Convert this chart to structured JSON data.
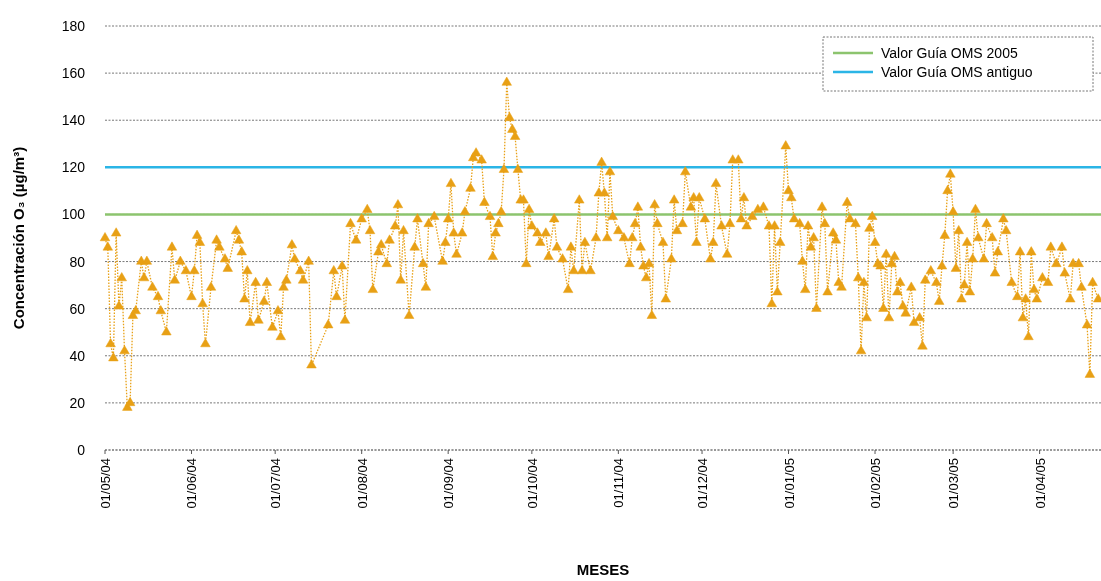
{
  "chart_data": {
    "type": "line",
    "xlabel": "MESES",
    "ylabel": "Concentración O₃ (µg/m³)",
    "xlim": [
      "2004-05-01",
      "2005-04-23"
    ],
    "ylim": [
      0,
      180
    ],
    "yticks": [
      0,
      20,
      40,
      60,
      80,
      100,
      120,
      140,
      160,
      180
    ],
    "xticks": [
      {
        "value": "2004-05-01",
        "label": "01/05/04"
      },
      {
        "value": "2004-06-01",
        "label": "01/06/04"
      },
      {
        "value": "2004-07-01",
        "label": "01/07/04"
      },
      {
        "value": "2004-08-01",
        "label": "01/08/04"
      },
      {
        "value": "2004-09-01",
        "label": "01/09/04"
      },
      {
        "value": "2004-10-01",
        "label": "01/10/04"
      },
      {
        "value": "2004-11-01",
        "label": "01/11/04"
      },
      {
        "value": "2004-12-01",
        "label": "01/12/04"
      },
      {
        "value": "2005-01-01",
        "label": "01/01/05"
      },
      {
        "value": "2005-02-01",
        "label": "01/02/05"
      },
      {
        "value": "2005-03-01",
        "label": "01/03/05"
      },
      {
        "value": "2005-04-01",
        "label": "01/04/05"
      }
    ],
    "grid": "y",
    "legend": "top right",
    "marker": "triangle",
    "line_style": "dotted",
    "ref_lines": [
      {
        "axis": "y",
        "value": 100,
        "label": "Valor Guía OMS 2005",
        "color": "#8cc46e"
      },
      {
        "axis": "y",
        "value": 120,
        "label": "Valor Guía OMS antiguo",
        "color": "#2bb5e6"
      }
    ],
    "series": [
      {
        "color": "#e8a015",
        "x": [
          "2004-05-01",
          "2004-05-02",
          "2004-05-03",
          "2004-05-04",
          "2004-05-05",
          "2004-05-06",
          "2004-05-07",
          "2004-05-08",
          "2004-05-09",
          "2004-05-10",
          "2004-05-11",
          "2004-05-12",
          "2004-05-14",
          "2004-05-15",
          "2004-05-16",
          "2004-05-18",
          "2004-05-20",
          "2004-05-21",
          "2004-05-23",
          "2004-05-25",
          "2004-05-26",
          "2004-05-28",
          "2004-05-30",
          "2004-06-01",
          "2004-06-02",
          "2004-06-03",
          "2004-06-04",
          "2004-06-05",
          "2004-06-06",
          "2004-06-08",
          "2004-06-10",
          "2004-06-11",
          "2004-06-13",
          "2004-06-14",
          "2004-06-17",
          "2004-06-18",
          "2004-06-19",
          "2004-06-20",
          "2004-06-21",
          "2004-06-22",
          "2004-06-24",
          "2004-06-25",
          "2004-06-27",
          "2004-06-28",
          "2004-06-30",
          "2004-07-02",
          "2004-07-03",
          "2004-07-04",
          "2004-07-05",
          "2004-07-07",
          "2004-07-08",
          "2004-07-10",
          "2004-07-11",
          "2004-07-13",
          "2004-07-14",
          "2004-07-20",
          "2004-07-22",
          "2004-07-23",
          "2004-07-25",
          "2004-07-26",
          "2004-07-28",
          "2004-07-30",
          "2004-08-01",
          "2004-08-03",
          "2004-08-04",
          "2004-08-05",
          "2004-08-07",
          "2004-08-08",
          "2004-08-10",
          "2004-08-11",
          "2004-08-13",
          "2004-08-14",
          "2004-08-15",
          "2004-08-16",
          "2004-08-18",
          "2004-08-20",
          "2004-08-21",
          "2004-08-23",
          "2004-08-24",
          "2004-08-25",
          "2004-08-27",
          "2004-08-30",
          "2004-08-31",
          "2004-09-01",
          "2004-09-02",
          "2004-09-03",
          "2004-09-04",
          "2004-09-06",
          "2004-09-07",
          "2004-09-09",
          "2004-09-10",
          "2004-09-11",
          "2004-09-13",
          "2004-09-14",
          "2004-09-16",
          "2004-09-17",
          "2004-09-18",
          "2004-09-19",
          "2004-09-20",
          "2004-09-21",
          "2004-09-22",
          "2004-09-23",
          "2004-09-24",
          "2004-09-25",
          "2004-09-26",
          "2004-09-27",
          "2004-09-28",
          "2004-09-29",
          "2004-09-30",
          "2004-10-01",
          "2004-10-03",
          "2004-10-04",
          "2004-10-06",
          "2004-10-07",
          "2004-10-09",
          "2004-10-10",
          "2004-10-12",
          "2004-10-14",
          "2004-10-15",
          "2004-10-16",
          "2004-10-18",
          "2004-10-19",
          "2004-10-20",
          "2004-10-22",
          "2004-10-24",
          "2004-10-25",
          "2004-10-26",
          "2004-10-27",
          "2004-10-28",
          "2004-10-29",
          "2004-10-30",
          "2004-11-01",
          "2004-11-03",
          "2004-11-05",
          "2004-11-06",
          "2004-11-07",
          "2004-11-08",
          "2004-11-09",
          "2004-11-10",
          "2004-11-11",
          "2004-11-12",
          "2004-11-13",
          "2004-11-14",
          "2004-11-15",
          "2004-11-17",
          "2004-11-18",
          "2004-11-20",
          "2004-11-21",
          "2004-11-22",
          "2004-11-24",
          "2004-11-25",
          "2004-11-27",
          "2004-11-28",
          "2004-11-29",
          "2004-11-30",
          "2004-12-02",
          "2004-12-04",
          "2004-12-05",
          "2004-12-06",
          "2004-12-08",
          "2004-12-10",
          "2004-12-11",
          "2004-12-12",
          "2004-12-14",
          "2004-12-15",
          "2004-12-16",
          "2004-12-17",
          "2004-12-19",
          "2004-12-21",
          "2004-12-23",
          "2004-12-25",
          "2004-12-26",
          "2004-12-27",
          "2004-12-28",
          "2004-12-29",
          "2004-12-31",
          "2005-01-01",
          "2005-01-02",
          "2005-01-03",
          "2005-01-05",
          "2005-01-06",
          "2005-01-07",
          "2005-01-08",
          "2005-01-09",
          "2005-01-10",
          "2005-01-11",
          "2005-01-13",
          "2005-01-14",
          "2005-01-15",
          "2005-01-17",
          "2005-01-18",
          "2005-01-19",
          "2005-01-20",
          "2005-01-22",
          "2005-01-23",
          "2005-01-25",
          "2005-01-26",
          "2005-01-27",
          "2005-01-28",
          "2005-01-29",
          "2005-01-30",
          "2005-01-31",
          "2005-02-01",
          "2005-02-02",
          "2005-02-03",
          "2005-02-04",
          "2005-02-05",
          "2005-02-06",
          "2005-02-07",
          "2005-02-08",
          "2005-02-09",
          "2005-02-10",
          "2005-02-11",
          "2005-02-12",
          "2005-02-14",
          "2005-02-15",
          "2005-02-17",
          "2005-02-18",
          "2005-02-19",
          "2005-02-21",
          "2005-02-23",
          "2005-02-24",
          "2005-02-25",
          "2005-02-26",
          "2005-02-27",
          "2005-02-28",
          "2005-03-01",
          "2005-03-02",
          "2005-03-03",
          "2005-03-04",
          "2005-03-05",
          "2005-03-06",
          "2005-03-07",
          "2005-03-08",
          "2005-03-09",
          "2005-03-10",
          "2005-03-12",
          "2005-03-13",
          "2005-03-15",
          "2005-03-16",
          "2005-03-17",
          "2005-03-19",
          "2005-03-20",
          "2005-03-22",
          "2005-03-24",
          "2005-03-25",
          "2005-03-26",
          "2005-03-27",
          "2005-03-28",
          "2005-03-29",
          "2005-03-30",
          "2005-03-31",
          "2005-04-02",
          "2005-04-04",
          "2005-04-05",
          "2005-04-07",
          "2005-04-09",
          "2005-04-10",
          "2005-04-12",
          "2005-04-13",
          "2005-04-15",
          "2005-04-16",
          "2005-04-18",
          "2005-04-19",
          "2005-04-20",
          "2005-04-22"
        ],
        "values": [
          90,
          86,
          45,
          39,
          92,
          61,
          73,
          42,
          18,
          20,
          57,
          59,
          80,
          73,
          80,
          69,
          65,
          59,
          50,
          86,
          72,
          80,
          76,
          65,
          76,
          91,
          88,
          62,
          45,
          69,
          89,
          86,
          81,
          77,
          93,
          89,
          84,
          64,
          76,
          54,
          71,
          55,
          63,
          71,
          52,
          59,
          48,
          69,
          72,
          87,
          81,
          76,
          72,
          80,
          36,
          53,
          76,
          65,
          78,
          55,
          96,
          89,
          98,
          102,
          93,
          68,
          84,
          87,
          79,
          89,
          95,
          104,
          72,
          93,
          57,
          86,
          98,
          79,
          69,
          96,
          99,
          80,
          88,
          98,
          113,
          92,
          83,
          92,
          101,
          111,
          124,
          126,
          123,
          105,
          99,
          82,
          92,
          96,
          101,
          119,
          156,
          141,
          136,
          133,
          119,
          106,
          106,
          79,
          102,
          95,
          92,
          88,
          92,
          82,
          98,
          86,
          81,
          68,
          86,
          76,
          106,
          76,
          88,
          76,
          90,
          109,
          122,
          109,
          90,
          118,
          99,
          93,
          90,
          79,
          90,
          96,
          103,
          86,
          78,
          73,
          79,
          57,
          104,
          96,
          88,
          64,
          81,
          106,
          93,
          96,
          118,
          103,
          107,
          88,
          107,
          98,
          81,
          88,
          113,
          95,
          83,
          96,
          123,
          123,
          98,
          107,
          95,
          99,
          102,
          103,
          95,
          62,
          95,
          67,
          88,
          129,
          110,
          107,
          98,
          96,
          80,
          68,
          95,
          86,
          90,
          60,
          103,
          96,
          67,
          92,
          89,
          71,
          69,
          105,
          98,
          96,
          73,
          42,
          71,
          56,
          94,
          99,
          88,
          79,
          78,
          60,
          83,
          56,
          79,
          82,
          67,
          71,
          61,
          58,
          69,
          54,
          56,
          44,
          72,
          76,
          71,
          63,
          78,
          91,
          110,
          117,
          101,
          77,
          93,
          64,
          70,
          88,
          67,
          81,
          102,
          90,
          81,
          96,
          90,
          75,
          84,
          98,
          93,
          71,
          65,
          84,
          56,
          64,
          48,
          84,
          68,
          64,
          73,
          71,
          86,
          79,
          86,
          75,
          64,
          79,
          79,
          69,
          53,
          32,
          71,
          64
        ]
      }
    ]
  }
}
